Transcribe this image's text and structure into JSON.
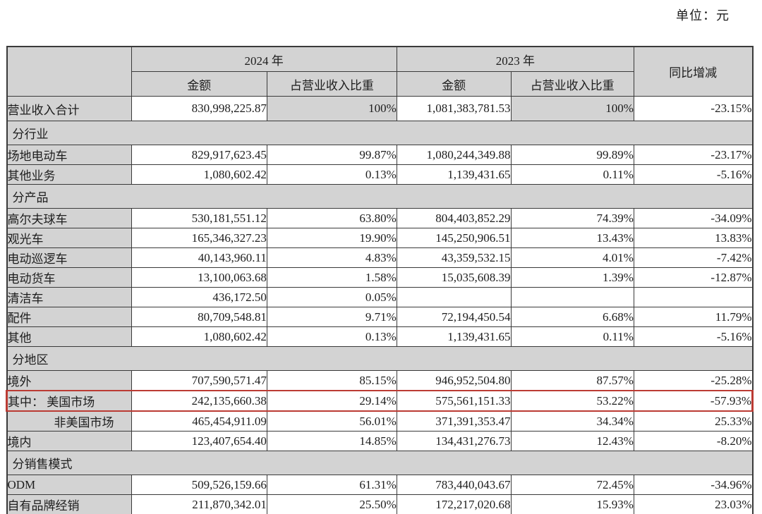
{
  "meta": {
    "unit_label": "单位：元"
  },
  "table": {
    "header": {
      "year_2024": "2024 年",
      "year_2023": "2023 年",
      "yoy": "同比增减",
      "amount": "金额",
      "pct": "占营业收入比重"
    },
    "colors": {
      "shade_bg": "#d3d3d3",
      "grid_line": "#3a3a3a",
      "highlight_border": "#bb3b33"
    },
    "rows": [
      {
        "type": "data",
        "summary": true,
        "shade_pct": true,
        "label": "营业收入合计",
        "a24": "830,998,225.87",
        "p24": "100%",
        "a23": "1,081,383,781.53",
        "p23": "100%",
        "yoy": "-23.15%"
      },
      {
        "type": "section",
        "label": "分行业"
      },
      {
        "type": "data",
        "label": "场地电动车",
        "a24": "829,917,623.45",
        "p24": "99.87%",
        "a23": "1,080,244,349.88",
        "p23": "99.89%",
        "yoy": "-23.17%"
      },
      {
        "type": "data",
        "label": "其他业务",
        "a24": "1,080,602.42",
        "p24": "0.13%",
        "a23": "1,139,431.65",
        "p23": "0.11%",
        "yoy": "-5.16%"
      },
      {
        "type": "section",
        "label": "分产品"
      },
      {
        "type": "data",
        "label": "高尔夫球车",
        "a24": "530,181,551.12",
        "p24": "63.80%",
        "a23": "804,403,852.29",
        "p23": "74.39%",
        "yoy": "-34.09%"
      },
      {
        "type": "data",
        "label": "观光车",
        "a24": "165,346,327.23",
        "p24": "19.90%",
        "a23": "145,250,906.51",
        "p23": "13.43%",
        "yoy": "13.83%"
      },
      {
        "type": "data",
        "label": "电动巡逻车",
        "a24": "40,143,960.11",
        "p24": "4.83%",
        "a23": "43,359,532.15",
        "p23": "4.01%",
        "yoy": "-7.42%"
      },
      {
        "type": "data",
        "label": "电动货车",
        "a24": "13,100,063.68",
        "p24": "1.58%",
        "a23": "15,035,608.39",
        "p23": "1.39%",
        "yoy": "-12.87%"
      },
      {
        "type": "data",
        "label": "清洁车",
        "a24": "436,172.50",
        "p24": "0.05%",
        "a23": "",
        "p23": "",
        "yoy": ""
      },
      {
        "type": "data",
        "label": "配件",
        "a24": "80,709,548.81",
        "p24": "9.71%",
        "a23": "72,194,450.54",
        "p23": "6.68%",
        "yoy": "11.79%"
      },
      {
        "type": "data",
        "label": "其他",
        "a24": "1,080,602.42",
        "p24": "0.13%",
        "a23": "1,139,431.65",
        "p23": "0.11%",
        "yoy": "-5.16%"
      },
      {
        "type": "section",
        "label": "分地区"
      },
      {
        "type": "data",
        "label": "境外",
        "a24": "707,590,571.47",
        "p24": "85.15%",
        "a23": "946,952,504.80",
        "p23": "87.57%",
        "yoy": "-25.28%"
      },
      {
        "type": "data",
        "highlight": true,
        "label": "其中： 美国市场",
        "a24": "242,135,660.38",
        "p24": "29.14%",
        "a23": "575,561,151.33",
        "p23": "53.22%",
        "yoy": "-57.93%"
      },
      {
        "type": "data",
        "indent": true,
        "label": "非美国市场",
        "a24": "465,454,911.09",
        "p24": "56.01%",
        "a23": "371,391,353.47",
        "p23": "34.34%",
        "yoy": "25.33%"
      },
      {
        "type": "data",
        "label": "境内",
        "a24": "123,407,654.40",
        "p24": "14.85%",
        "a23": "134,431,276.73",
        "p23": "12.43%",
        "yoy": "-8.20%"
      },
      {
        "type": "section",
        "label": "分销售模式"
      },
      {
        "type": "data",
        "label": "ODM",
        "a24": "509,526,159.66",
        "p24": "61.31%",
        "a23": "783,440,043.67",
        "p23": "72.45%",
        "yoy": "-34.96%"
      },
      {
        "type": "data",
        "label": "自有品牌经销",
        "a24": "211,870,342.01",
        "p24": "25.50%",
        "a23": "172,217,020.68",
        "p23": "15.93%",
        "yoy": "23.03%"
      }
    ]
  }
}
